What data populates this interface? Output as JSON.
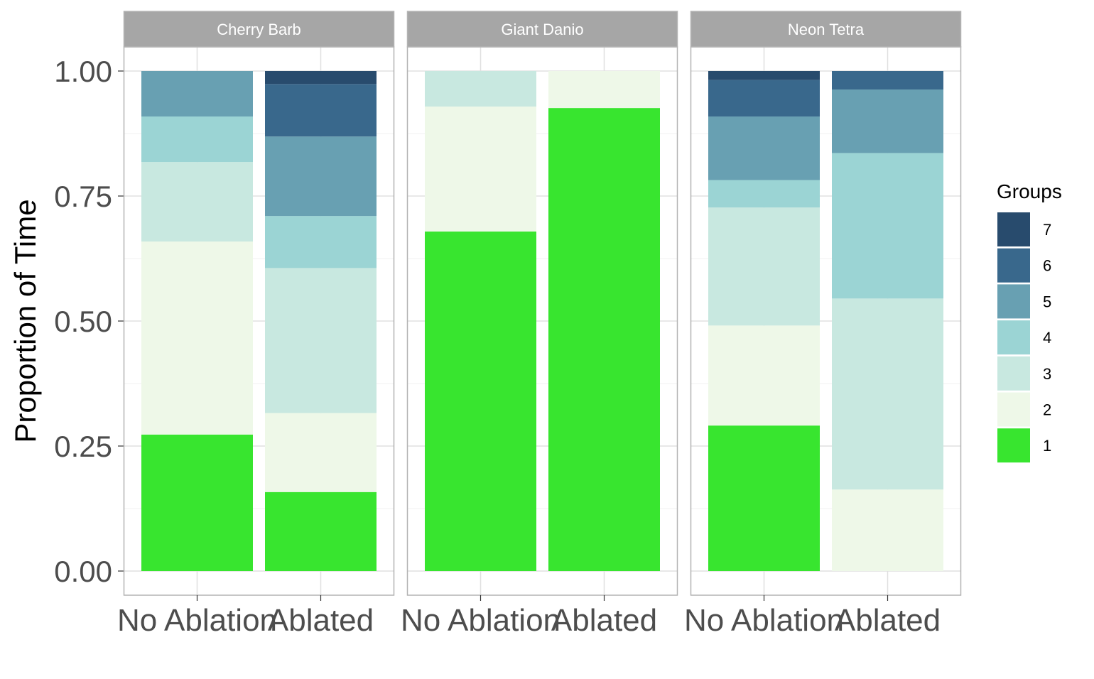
{
  "chart_data": {
    "type": "bar",
    "stacked": true,
    "ylabel": "Proportion of Time",
    "ylim": [
      0,
      1
    ],
    "yticks": [
      "0.00",
      "0.25",
      "0.50",
      "0.75",
      "1.00"
    ],
    "categories": [
      "No Ablation",
      "Ablated"
    ],
    "grid": true,
    "legend": {
      "title": "Groups",
      "position": "right",
      "items": [
        "7",
        "6",
        "5",
        "4",
        "3",
        "2",
        "1"
      ]
    },
    "colors": {
      "1": "#38e52f",
      "2": "#eef8e8",
      "3": "#c8e8e0",
      "4": "#9bd4d4",
      "5": "#68a0b2",
      "6": "#39688c",
      "7": "#284b6d"
    },
    "panels": [
      {
        "title": "Cherry Barb",
        "series": [
          {
            "name": "1",
            "values": [
              0.273,
              0.158
            ]
          },
          {
            "name": "2",
            "values": [
              0.386,
              0.158
            ]
          },
          {
            "name": "3",
            "values": [
              0.159,
              0.29
            ]
          },
          {
            "name": "4",
            "values": [
              0.091,
              0.104
            ]
          },
          {
            "name": "5",
            "values": [
              0.091,
              0.159
            ]
          },
          {
            "name": "6",
            "values": [
              0,
              0.105
            ]
          },
          {
            "name": "7",
            "values": [
              0,
              0.026
            ]
          }
        ]
      },
      {
        "title": "Giant Danio",
        "series": [
          {
            "name": "1",
            "values": [
              0.679,
              0.926
            ]
          },
          {
            "name": "2",
            "values": [
              0.25,
              0.074
            ]
          },
          {
            "name": "3",
            "values": [
              0.071,
              0
            ]
          },
          {
            "name": "4",
            "values": [
              0,
              0
            ]
          },
          {
            "name": "5",
            "values": [
              0,
              0
            ]
          },
          {
            "name": "6",
            "values": [
              0,
              0
            ]
          },
          {
            "name": "7",
            "values": [
              0,
              0
            ]
          }
        ]
      },
      {
        "title": "Neon Tetra",
        "series": [
          {
            "name": "1",
            "values": [
              0.291,
              0
            ]
          },
          {
            "name": "2",
            "values": [
              0.2,
              0.163
            ]
          },
          {
            "name": "3",
            "values": [
              0.236,
              0.382
            ]
          },
          {
            "name": "4",
            "values": [
              0.055,
              0.291
            ]
          },
          {
            "name": "5",
            "values": [
              0.127,
              0.127
            ]
          },
          {
            "name": "6",
            "values": [
              0.073,
              0.037
            ]
          },
          {
            "name": "7",
            "values": [
              0.018,
              0
            ]
          }
        ]
      }
    ]
  }
}
